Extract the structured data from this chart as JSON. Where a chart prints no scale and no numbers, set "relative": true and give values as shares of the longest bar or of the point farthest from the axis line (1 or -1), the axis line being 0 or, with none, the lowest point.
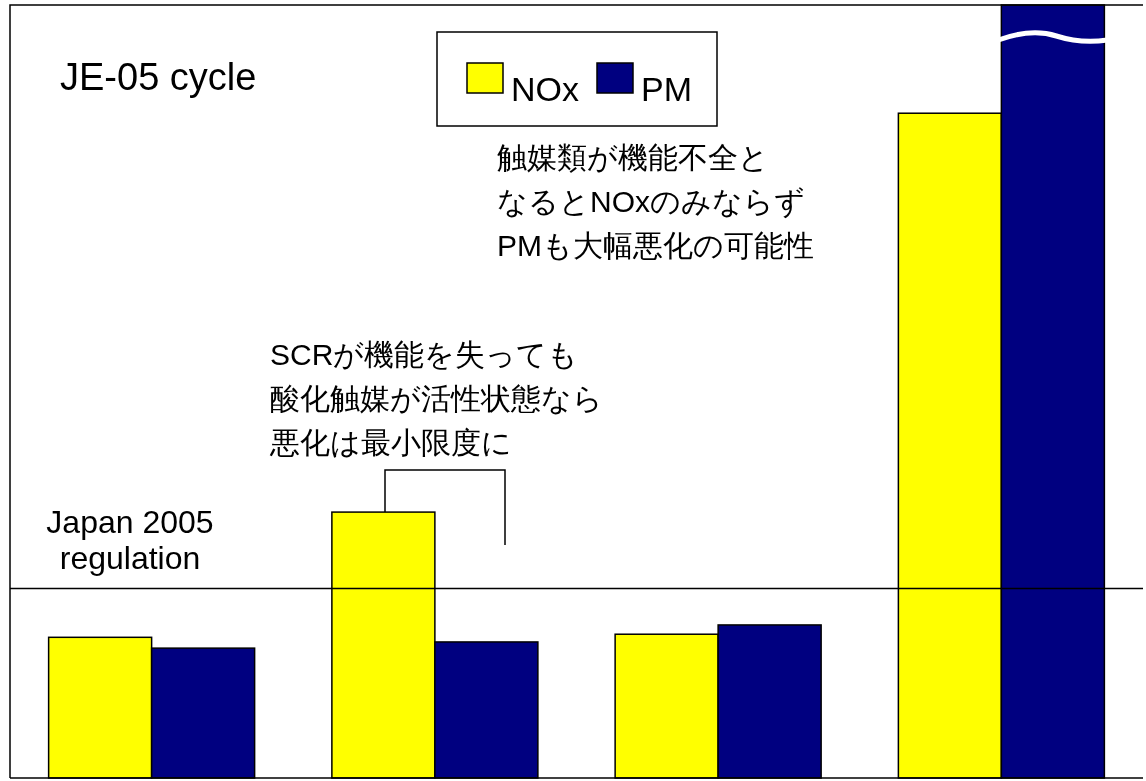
{
  "chart_data": {
    "type": "bar",
    "title": "JE-05 cycle",
    "relative": true,
    "categories": [
      null,
      null,
      null,
      null
    ],
    "series": [
      {
        "name": "NOx",
        "color": "#ffff00",
        "values": [
          0.182,
          0.344,
          0.186,
          0.86
        ]
      },
      {
        "name": "PM",
        "color": "#000080",
        "values": [
          0.168,
          0.176,
          0.198,
          1.0
        ]
      }
    ],
    "ref_lines": [
      {
        "axis": "y",
        "value": 0.245,
        "label": "Japan 2005\nregulation",
        "color": "#000000"
      }
    ],
    "annotations": [
      "SCRが機能を失っても",
      "酸化触媒が活性状態なら",
      "悪化は最小限度に",
      "触媒類が機能不全と",
      "なるとNOxのみならず",
      "PMも大幅悪化の可能性"
    ],
    "legend": "top"
  }
}
